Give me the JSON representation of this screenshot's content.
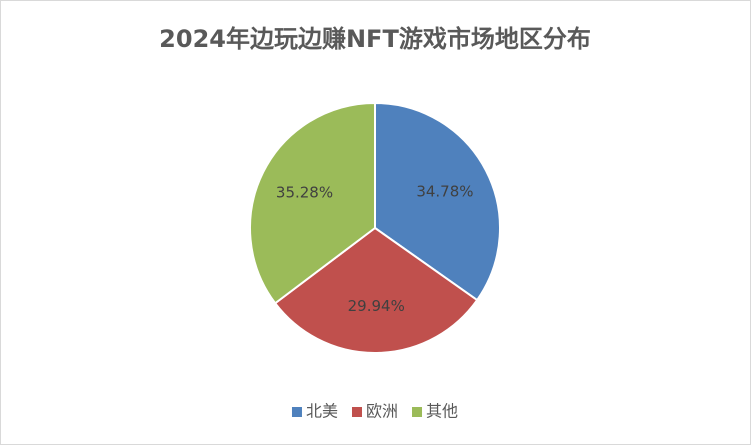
{
  "chart_data": {
    "type": "pie",
    "title": "2024年边玩边赚NFT游戏市场地区分布",
    "categories": [
      "北美",
      "欧洲",
      "其他"
    ],
    "values": [
      34.78,
      29.94,
      35.28
    ],
    "value_labels": [
      "34.78%",
      "29.94%",
      "35.28%"
    ],
    "colors": [
      "#4f81bd",
      "#c0504d",
      "#9bbb59"
    ],
    "legend": "bottom"
  }
}
